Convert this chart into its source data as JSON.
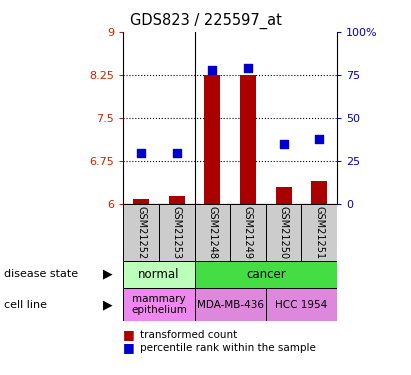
{
  "title": "GDS823 / 225597_at",
  "samples": [
    "GSM21252",
    "GSM21253",
    "GSM21248",
    "GSM21249",
    "GSM21250",
    "GSM21251"
  ],
  "bar_values": [
    6.1,
    6.15,
    8.25,
    8.25,
    6.3,
    6.4
  ],
  "percentile_values": [
    30,
    30,
    78,
    79,
    35,
    38
  ],
  "ylim_left": [
    6,
    9
  ],
  "ylim_right": [
    0,
    100
  ],
  "yticks_left": [
    6,
    6.75,
    7.5,
    8.25,
    9
  ],
  "yticks_right": [
    0,
    25,
    50,
    75,
    100
  ],
  "ytick_labels_left": [
    "6",
    "6.75",
    "7.5",
    "8.25",
    "9"
  ],
  "ytick_labels_right": [
    "0",
    "25",
    "50",
    "75",
    "100%"
  ],
  "bar_color": "#aa0000",
  "dot_color": "#0000cc",
  "dot_size": 35,
  "bar_width": 0.45,
  "grid_color": "black",
  "disease_state_label": "disease state",
  "cell_line_label": "cell line",
  "disease_groups": [
    {
      "label": "normal",
      "cols": [
        0,
        1
      ],
      "color": "#bbffbb"
    },
    {
      "label": "cancer",
      "cols": [
        2,
        3,
        4,
        5
      ],
      "color": "#44dd44"
    }
  ],
  "cell_line_groups": [
    {
      "label": "mammary\nepithelium",
      "cols": [
        0,
        1
      ],
      "color": "#ee88ee"
    },
    {
      "label": "MDA-MB-436",
      "cols": [
        2,
        3
      ],
      "color": "#dd88dd"
    },
    {
      "label": "HCC 1954",
      "cols": [
        4,
        5
      ],
      "color": "#dd88dd"
    }
  ],
  "left_tick_color": "#cc2200",
  "right_tick_color": "#0000cc",
  "legend_bar_label": "transformed count",
  "legend_dot_label": "percentile rank within the sample",
  "bg_plot": "#ffffff",
  "sample_bg": "#cccccc",
  "normal_group_color": "#bbffbb",
  "cancer_group_color": "#33cc33"
}
